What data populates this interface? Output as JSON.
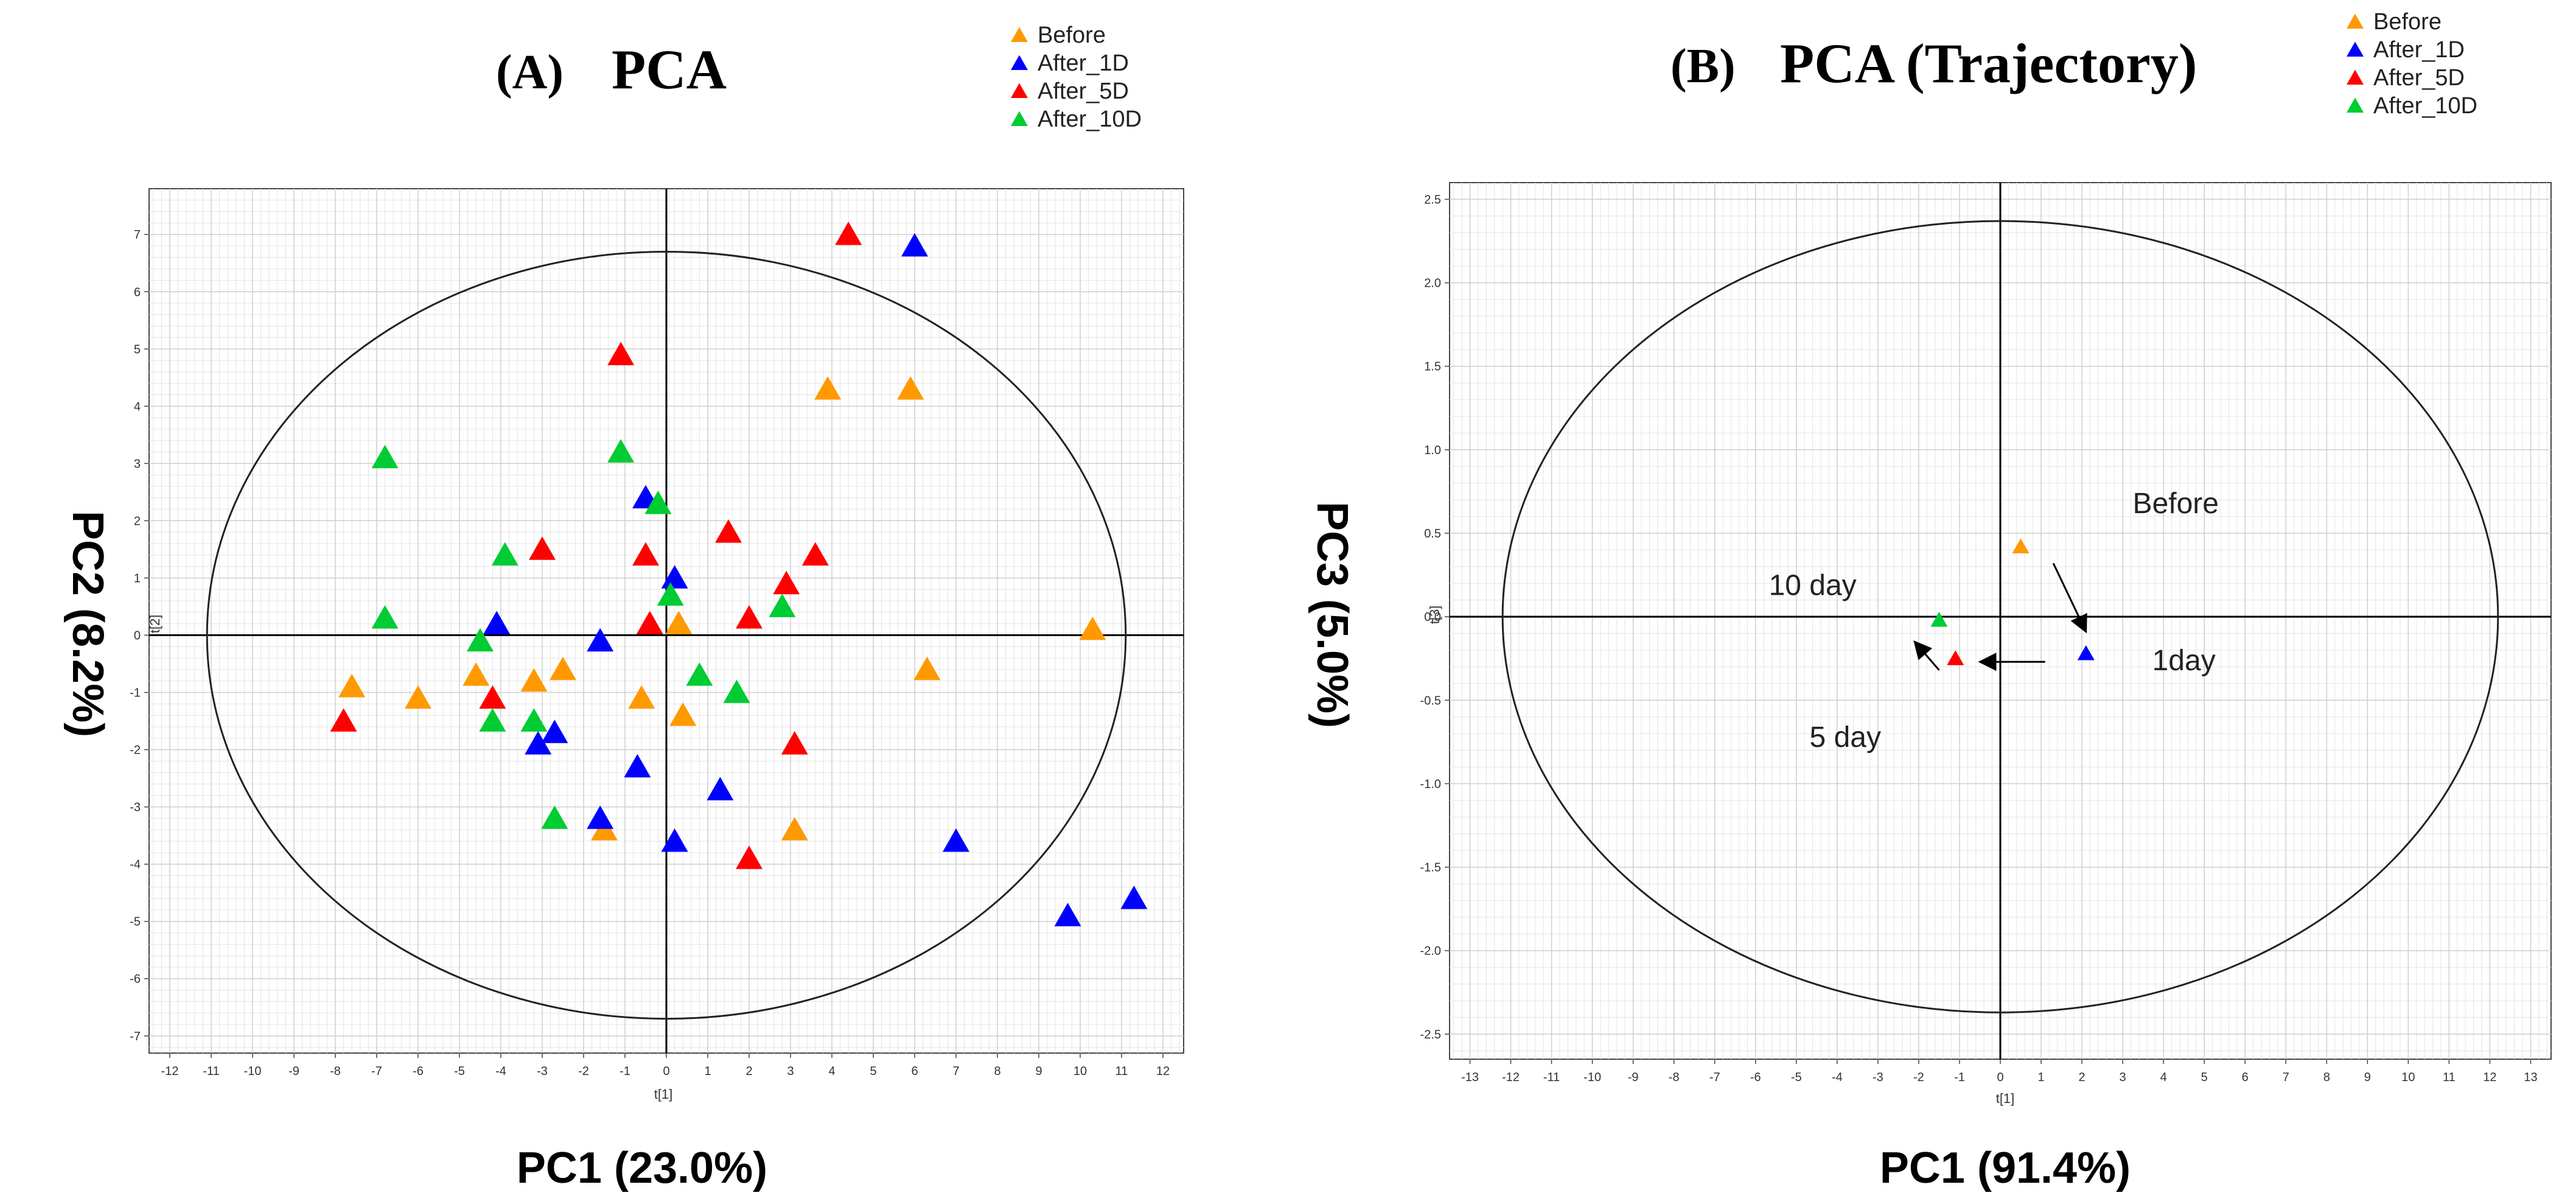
{
  "chart_data": [
    {
      "type": "scatter",
      "panel_label": "(A)",
      "title": "PCA",
      "xlabel": "PC1 (23.0%)",
      "ylabel": "PC2 (8.2%)",
      "x_axis_small_label": "t[1]",
      "y_axis_small_label": "t[2]",
      "xlim": [
        -12.5,
        12.5
      ],
      "ylim": [
        -7.3,
        7.8
      ],
      "xticks": [
        "-12",
        "-11",
        "-10",
        "-9",
        "-8",
        "-7",
        "-6",
        "-5",
        "-4",
        "-3",
        "-2",
        "-1",
        "0",
        "1",
        "2",
        "3",
        "4",
        "5",
        "6",
        "7",
        "8",
        "9",
        "10",
        "11",
        "12"
      ],
      "yticks": [
        "-7",
        "-6",
        "-5",
        "-4",
        "-3",
        "-2",
        "-1",
        "0",
        "1",
        "2",
        "3",
        "4",
        "5",
        "6",
        "7"
      ],
      "grid": true,
      "ellipse": {
        "rx": 11.1,
        "ry": 6.7
      },
      "legend": [
        "Before",
        "After_1D",
        "After_5D",
        "After_10D"
      ],
      "series": [
        {
          "name": "Before",
          "color": "#FF9900",
          "points": [
            [
              3.9,
              4.3
            ],
            [
              5.9,
              4.3
            ],
            [
              10.3,
              0.1
            ],
            [
              6.3,
              -0.6
            ],
            [
              0.3,
              0.2
            ],
            [
              -0.6,
              -1.1
            ],
            [
              0.4,
              -1.4
            ],
            [
              -2.5,
              -0.6
            ],
            [
              -3.2,
              -0.8
            ],
            [
              -4.6,
              -0.7
            ],
            [
              -6.0,
              -1.1
            ],
            [
              -7.6,
              -0.9
            ],
            [
              -1.5,
              -3.4
            ],
            [
              3.1,
              -3.4
            ]
          ]
        },
        {
          "name": "After_1D",
          "color": "#0000FF",
          "points": [
            [
              6.0,
              6.8
            ],
            [
              -0.5,
              2.4
            ],
            [
              0.2,
              1.0
            ],
            [
              -1.6,
              -0.1
            ],
            [
              -4.1,
              0.2
            ],
            [
              -2.7,
              -1.7
            ],
            [
              -3.1,
              -1.9
            ],
            [
              -0.7,
              -2.3
            ],
            [
              1.3,
              -2.7
            ],
            [
              -1.6,
              -3.2
            ],
            [
              0.2,
              -3.6
            ],
            [
              7.0,
              -3.6
            ],
            [
              9.7,
              -4.9
            ],
            [
              11.3,
              -4.6
            ]
          ]
        },
        {
          "name": "After_5D",
          "color": "#FF0000",
          "points": [
            [
              4.4,
              7.0
            ],
            [
              -1.1,
              4.9
            ],
            [
              -3.0,
              1.5
            ],
            [
              -0.5,
              1.4
            ],
            [
              1.5,
              1.8
            ],
            [
              3.6,
              1.4
            ],
            [
              2.9,
              0.9
            ],
            [
              2.0,
              0.3
            ],
            [
              -0.4,
              0.2
            ],
            [
              -4.2,
              -1.1
            ],
            [
              -7.8,
              -1.5
            ],
            [
              3.1,
              -1.9
            ],
            [
              2.0,
              -3.9
            ]
          ]
        },
        {
          "name": "After_10D",
          "color": "#00CC33",
          "points": [
            [
              -6.8,
              3.1
            ],
            [
              -1.1,
              3.2
            ],
            [
              -0.2,
              2.3
            ],
            [
              -3.9,
              1.4
            ],
            [
              0.1,
              0.7
            ],
            [
              -6.8,
              0.3
            ],
            [
              -4.5,
              -0.1
            ],
            [
              0.8,
              -0.7
            ],
            [
              1.7,
              -1.0
            ],
            [
              -4.2,
              -1.5
            ],
            [
              -3.2,
              -1.5
            ],
            [
              2.8,
              0.5
            ],
            [
              -2.7,
              -3.2
            ]
          ]
        }
      ]
    },
    {
      "type": "scatter",
      "panel_label": "(B)",
      "title": "PCA (Trajectory)",
      "xlabel": "PC1 (91.4%)",
      "ylabel": "PC3 (5.0%)",
      "x_axis_small_label": "t[1]",
      "y_axis_small_label": "t[3]",
      "xlim": [
        -13.5,
        13.5
      ],
      "ylim": [
        -2.65,
        2.6
      ],
      "xticks": [
        "-13",
        "-12",
        "-11",
        "-10",
        "-9",
        "-8",
        "-7",
        "-6",
        "-5",
        "-4",
        "-3",
        "-2",
        "-1",
        "0",
        "1",
        "2",
        "3",
        "4",
        "5",
        "6",
        "7",
        "8",
        "9",
        "10",
        "11",
        "12",
        "13"
      ],
      "yticks": [
        "-2.5",
        "-2.0",
        "-1.5",
        "-1.0",
        "-0.5",
        "0.0",
        "0.5",
        "1.0",
        "1.5",
        "2.0",
        "2.5"
      ],
      "grid": true,
      "ellipse": {
        "rx": 12.2,
        "ry": 2.37
      },
      "legend": [
        "Before",
        "After_1D",
        "After_5D",
        "After_10D"
      ],
      "series": [
        {
          "name": "Before",
          "color": "#FF9900",
          "points": [
            [
              0.5,
              0.42
            ]
          ]
        },
        {
          "name": "After_1D",
          "color": "#0000FF",
          "points": [
            [
              2.1,
              -0.22
            ]
          ]
        },
        {
          "name": "After_5D",
          "color": "#FF0000",
          "points": [
            [
              -1.1,
              -0.25
            ]
          ]
        },
        {
          "name": "After_10D",
          "color": "#00CC33",
          "points": [
            [
              -1.5,
              -0.02
            ]
          ]
        }
      ],
      "annotations": [
        {
          "text": "Before",
          "x": 4.3,
          "y": 0.62
        },
        {
          "text": "1day",
          "x": 4.5,
          "y": -0.32
        },
        {
          "text": "10 day",
          "x": -4.6,
          "y": 0.13
        },
        {
          "text": "5 day",
          "x": -3.8,
          "y": -0.78
        }
      ],
      "arrows": [
        {
          "from": [
            1.3,
            0.32
          ],
          "to": [
            2.1,
            -0.09
          ]
        },
        {
          "from": [
            1.1,
            -0.27
          ],
          "to": [
            -0.5,
            -0.27
          ]
        },
        {
          "from": [
            -1.5,
            -0.32
          ],
          "to": [
            -2.1,
            -0.15
          ]
        }
      ]
    }
  ]
}
